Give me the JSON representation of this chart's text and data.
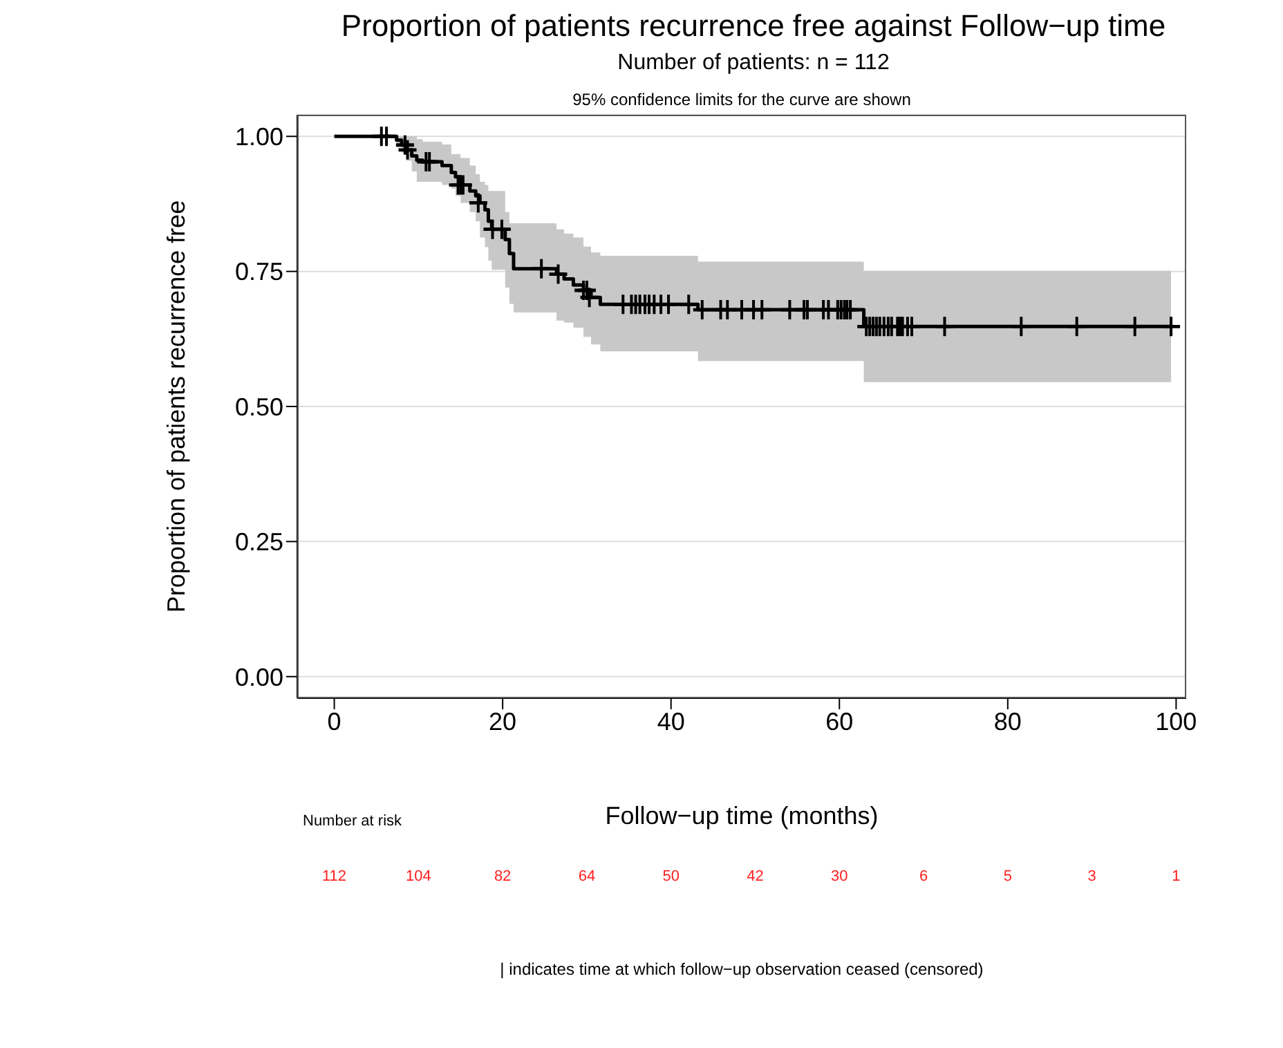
{
  "chart_data": {
    "type": "step",
    "title": "Proportion of patients recurrence free against Follow−up time",
    "subtitle": "Number of patients: n = 112",
    "xlabel": "Follow−up time (months)",
    "ylabel": "Proportion of patients recurrence free",
    "annotations": [
      "95% confidence limits for the curve are shown",
      "Number at risk",
      "112",
      "104",
      "82",
      "64",
      "50",
      "42",
      "30",
      "6",
      "5",
      "3",
      "1",
      "| indicates time at which follow−up observation ceased (censored)"
    ],
    "xlim": [
      -4.4,
      101.2
    ],
    "xticks": [
      0,
      20,
      40,
      60,
      80,
      100
    ],
    "ylim": [
      -0.04,
      1.04
    ],
    "yticks": [
      {
        "value": 0,
        "label": "0.00"
      },
      {
        "value": 0.25,
        "label": "0.25"
      },
      {
        "value": 0.5,
        "label": "0.50"
      },
      {
        "value": 0.75,
        "label": "0.75"
      },
      {
        "value": 1,
        "label": "1.00"
      }
    ],
    "grid": "y",
    "legend": false,
    "line_style": "solid",
    "series": [
      {
        "color": "#000000",
        "marker": "none",
        "x": [
          0,
          7.4,
          8.0,
          8.6,
          9.2,
          9.8,
          10.5,
          12.8,
          13.9,
          14.4,
          15.0,
          16.1,
          16.8,
          17.3,
          17.9,
          18.3,
          18.7,
          20.3,
          20.8,
          21.3,
          26.4,
          27.3,
          28.4,
          29.6,
          30.5,
          31.6,
          43.2,
          62.9,
          99.4
        ],
        "values": [
          1,
          0.993,
          0.984,
          0.975,
          0.964,
          0.956,
          0.953,
          0.946,
          0.933,
          0.925,
          0.91,
          0.899,
          0.89,
          0.877,
          0.864,
          0.843,
          0.828,
          0.809,
          0.783,
          0.755,
          0.745,
          0.736,
          0.725,
          0.715,
          0.702,
          0.689,
          0.679,
          0.648,
          0.648
        ],
        "lower": [
          1,
          0.98,
          0.97,
          0.955,
          0.935,
          0.916,
          0.916,
          0.91,
          0.903,
          0.89,
          0.877,
          0.86,
          0.843,
          0.813,
          0.795,
          0.77,
          0.753,
          0.72,
          0.69,
          0.674,
          0.659,
          0.655,
          0.646,
          0.629,
          0.615,
          0.602,
          0.584,
          0.545,
          0.545
        ],
        "upper": [
          1,
          1,
          1,
          1,
          1,
          0.995,
          0.99,
          0.985,
          0.967,
          0.967,
          0.96,
          0.946,
          0.93,
          0.916,
          0.91,
          0.899,
          0.899,
          0.86,
          0.839,
          0.839,
          0.828,
          0.82,
          0.813,
          0.796,
          0.785,
          0.779,
          0.768,
          0.751,
          0.751
        ]
      },
      {
        "type": "scatter",
        "color": "#000000",
        "marker": "cross",
        "x": [
          5.6,
          6.2,
          8.4,
          8.7,
          10.9,
          11.3,
          14.7,
          15.0,
          15.3,
          17.1,
          18.8,
          19.9,
          24.6,
          26.6,
          29.6,
          30.0,
          30.3,
          34.3,
          35.3,
          35.8,
          36.3,
          36.9,
          37.4,
          38.0,
          38.8,
          39.7,
          42.1,
          43.7,
          45.9,
          46.7,
          48.4,
          49.8,
          50.8,
          54.1,
          55.8,
          56.2,
          58.1,
          58.7,
          59.8,
          60.2,
          60.6,
          60.9,
          61.3,
          63.2,
          63.6,
          64.0,
          64.4,
          64.8,
          65.3,
          65.8,
          66.2,
          66.9,
          67.2,
          67.5,
          68.1,
          68.6,
          72.5,
          81.6,
          88.2,
          95.1,
          99.4
        ],
        "values": [
          1,
          1,
          0.984,
          0.975,
          0.953,
          0.953,
          0.91,
          0.91,
          0.91,
          0.877,
          0.828,
          0.828,
          0.755,
          0.745,
          0.715,
          0.715,
          0.702,
          0.689,
          0.689,
          0.689,
          0.689,
          0.689,
          0.689,
          0.689,
          0.689,
          0.689,
          0.689,
          0.679,
          0.679,
          0.679,
          0.679,
          0.679,
          0.679,
          0.679,
          0.679,
          0.679,
          0.679,
          0.679,
          0.679,
          0.679,
          0.679,
          0.679,
          0.679,
          0.648,
          0.648,
          0.648,
          0.648,
          0.648,
          0.648,
          0.648,
          0.648,
          0.648,
          0.648,
          0.648,
          0.648,
          0.648,
          0.648,
          0.648,
          0.648,
          0.648,
          0.648
        ]
      }
    ]
  }
}
